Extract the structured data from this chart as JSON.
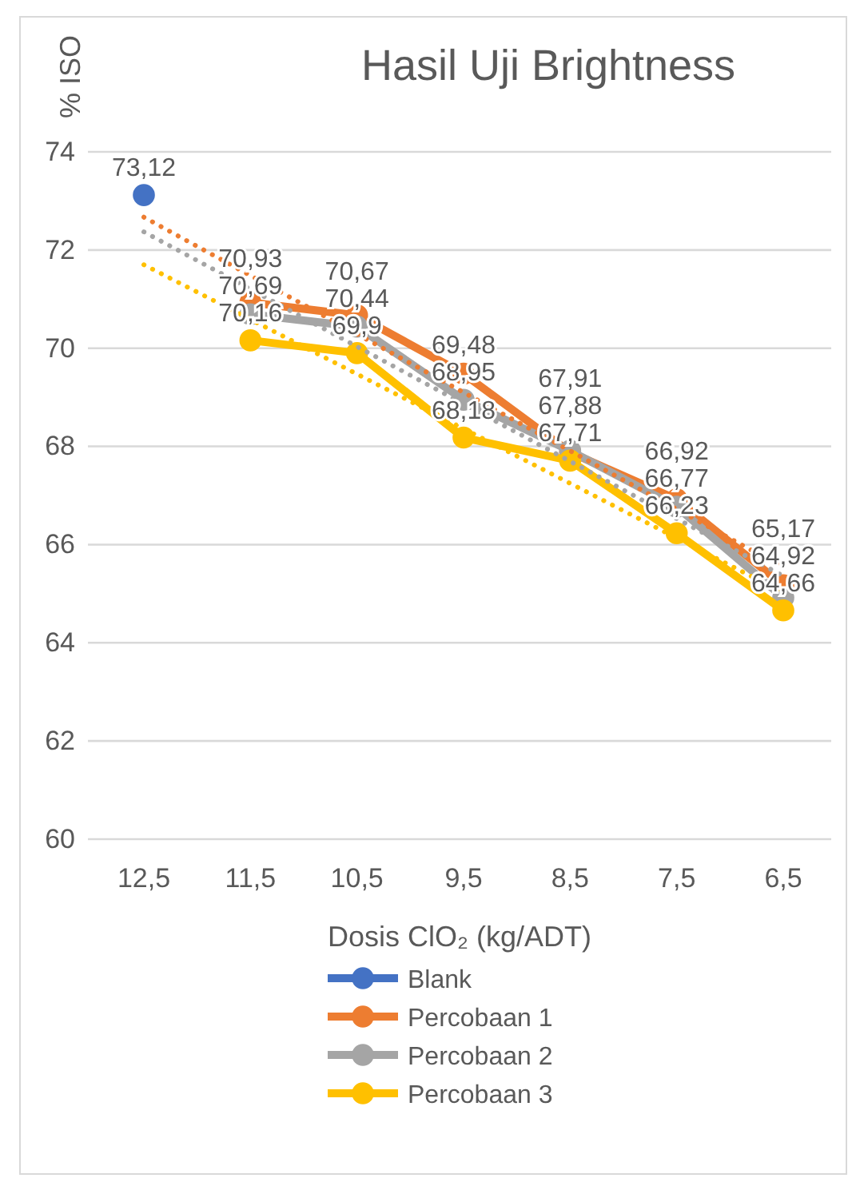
{
  "chart_data": {
    "type": "line",
    "title": "Hasil Uji Brightness",
    "xlabel": "Dosis ClO₂ (kg/ADT)",
    "ylabel": "% ISO",
    "categories": [
      "12,5",
      "11,5",
      "10,5",
      "9,5",
      "8,5",
      "7,5",
      "6,5"
    ],
    "ylim": [
      60,
      74
    ],
    "yticks": [
      60,
      62,
      64,
      66,
      68,
      70,
      72,
      74
    ],
    "grid": "y",
    "legend": "bottom",
    "marker": "circle",
    "series": [
      {
        "name": "Blank",
        "color": "#4472c4",
        "values": [
          73.12,
          null,
          null,
          null,
          null,
          null,
          null
        ],
        "value_labels": [
          "73,12",
          null,
          null,
          null,
          null,
          null,
          null
        ]
      },
      {
        "name": "Percobaan 1",
        "color": "#ed7d31",
        "values": [
          null,
          70.93,
          70.67,
          69.48,
          67.88,
          66.92,
          65.17
        ],
        "value_labels": [
          null,
          "70,93",
          "70,67",
          "69,48",
          "67,88",
          "66,92",
          "65,17"
        ]
      },
      {
        "name": "Percobaan 2",
        "color": "#a5a5a5",
        "values": [
          null,
          70.69,
          70.44,
          68.95,
          67.91,
          66.77,
          64.92
        ],
        "value_labels": [
          null,
          "70,69",
          "70,44",
          "68,95",
          "67,91",
          "66,77",
          "64,92"
        ]
      },
      {
        "name": "Percobaan 3",
        "color": "#ffc000",
        "values": [
          null,
          70.16,
          69.9,
          68.18,
          67.71,
          66.23,
          64.66
        ],
        "value_labels": [
          null,
          "70,16",
          "69,9",
          "68,18",
          "67,71",
          "66,23",
          "64,66"
        ]
      },
      {
        "type": "line",
        "line_style": "dotted",
        "marker": "none",
        "color": "#ed7d31",
        "x": [
          "12,5",
          "6,5"
        ],
        "values": [
          72.67,
          65.53
        ]
      },
      {
        "type": "line",
        "line_style": "dotted",
        "marker": "none",
        "color": "#a5a5a5",
        "x": [
          "12,5",
          "6,5"
        ],
        "values": [
          72.37,
          65.36
        ]
      },
      {
        "type": "line",
        "line_style": "dotted",
        "marker": "none",
        "color": "#ffc000",
        "x": [
          "12,5",
          "6,5"
        ],
        "values": [
          71.7,
          65.02
        ]
      }
    ]
  }
}
